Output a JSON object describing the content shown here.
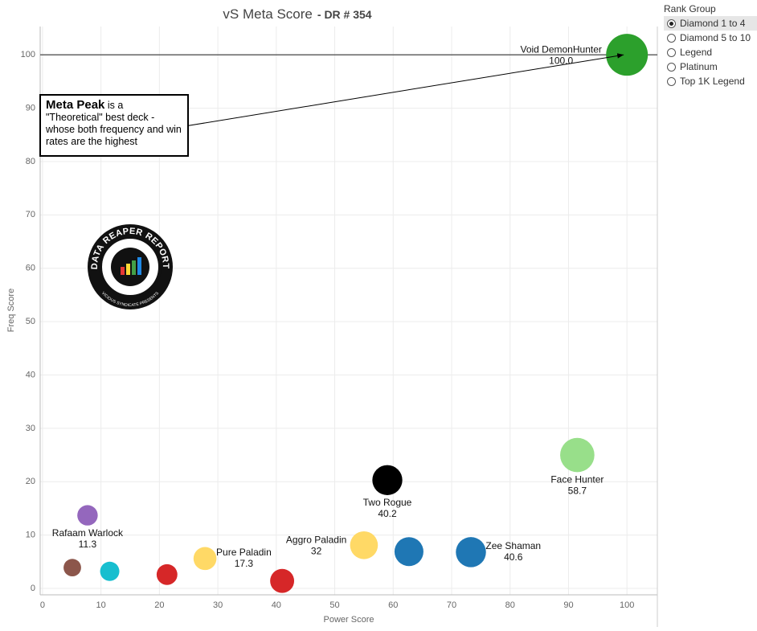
{
  "chart_data": {
    "type": "bubble",
    "title": "vS Meta Score",
    "subtitle": "- DR # 354",
    "x_label": "Power Score",
    "y_label": "Freq Score",
    "xlim": [
      -0.4,
      105.2
    ],
    "ylim": [
      -1.2,
      105.3
    ],
    "xticks": [
      0,
      10,
      20,
      30,
      40,
      50,
      60,
      70,
      80,
      90,
      100
    ],
    "yticks": [
      0,
      10,
      20,
      30,
      40,
      50,
      60,
      70,
      80,
      90,
      100
    ],
    "grid": true,
    "reference_line_y": 100,
    "points": [
      {
        "name": "Void DemonHunter",
        "color": "#2ca02c",
        "x": 100,
        "y": 100,
        "size": 100,
        "size_label": "100.0"
      },
      {
        "name": "Face Hunter",
        "color": "#98df8a",
        "x": 91.5,
        "y": 25.0,
        "size": 58.7
      },
      {
        "name": "Two Rogue",
        "color": "#000000",
        "x": 59.0,
        "y": 20.3,
        "size": 40.2
      },
      {
        "name": "Zee Shaman",
        "color": "#1f77b4",
        "x": 73.3,
        "y": 6.8,
        "size": 40.6
      },
      {
        "name": null,
        "color": "#1f77b4",
        "x": 62.7,
        "y": 6.9,
        "size": 36
      },
      {
        "name": "Aggro Paladin",
        "color": "#ffd966",
        "x": 55.0,
        "y": 8.1,
        "size": 32.0
      },
      {
        "name": "Pure Paladin",
        "color": "#ffd966",
        "x": 27.8,
        "y": 5.6,
        "size": 17.3
      },
      {
        "name": null,
        "color": "#d62728",
        "x": 41.0,
        "y": 1.4,
        "size": 20
      },
      {
        "name": null,
        "color": "#d62728",
        "x": 21.3,
        "y": 2.6,
        "size": 12
      },
      {
        "name": null,
        "color": "#17becf",
        "x": 11.5,
        "y": 3.2,
        "size": 9
      },
      {
        "name": null,
        "color": "#8c564b",
        "x": 5.1,
        "y": 3.9,
        "size": 6
      },
      {
        "name": "Rafaam Warlock",
        "color": "#9467bd",
        "x": 7.7,
        "y": 13.7,
        "size": 11.3
      }
    ],
    "annotation": {
      "bold": "Meta Peak",
      "text": "is a \"Theoretical\" best deck - whose both frequency and win rates are the highest"
    },
    "logo": {
      "title": "DATA REAPER REPORT",
      "subtitle": "VICIOUS SYNDICATE PRESENTS"
    }
  },
  "filter": {
    "title": "Rank Group",
    "options": [
      "Diamond 1 to 4",
      "Diamond 5 to 10",
      "Legend",
      "Platinum",
      "Top 1K Legend"
    ],
    "selected": 0
  }
}
